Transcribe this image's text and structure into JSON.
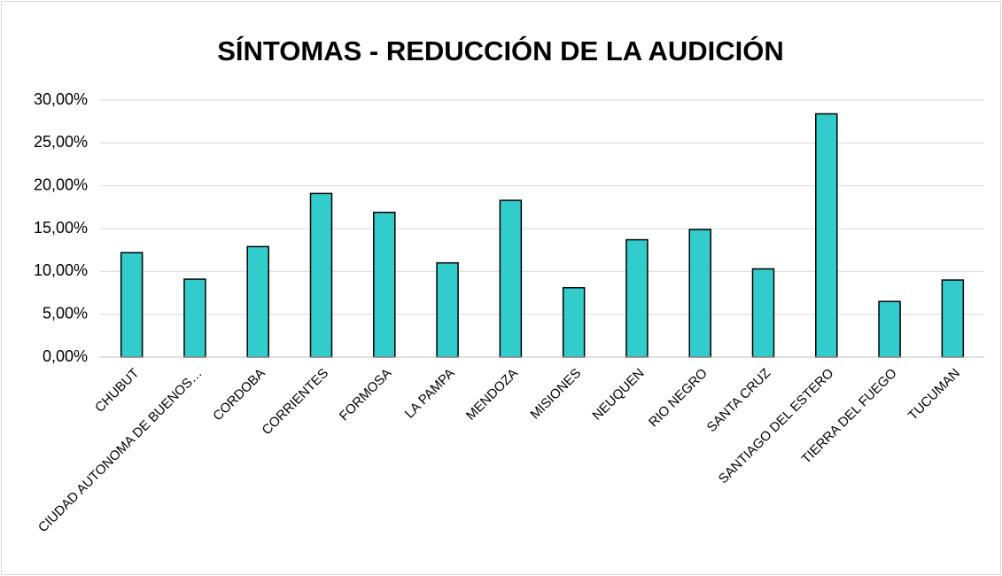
{
  "chart_data": {
    "type": "bar",
    "title": "SÍNTOMAS - REDUCCIÓN DE LA AUDICIÓN",
    "categories": [
      "CHUBUT",
      "CIUDAD AUTONOMA DE BUENOS…",
      "CORDOBA",
      "CORRIENTES",
      "FORMOSA",
      "LA PAMPA",
      "MENDOZA",
      "MISIONES",
      "NEUQUEN",
      "RIO NEGRO",
      "SANTA CRUZ",
      "SANTIAGO DEL ESTERO",
      "TIERRA DEL FUEGO",
      "TUCUMAN"
    ],
    "values": [
      12.2,
      9.1,
      12.9,
      19.1,
      16.9,
      11.0,
      18.3,
      8.1,
      13.7,
      14.9,
      10.3,
      28.4,
      6.5,
      9.0
    ],
    "color": "#33cccc",
    "ylim": [
      0,
      30
    ],
    "yticks": [
      {
        "value": 0,
        "label": "0,00%"
      },
      {
        "value": 5,
        "label": "5,00%"
      },
      {
        "value": 10,
        "label": "10,00%"
      },
      {
        "value": 15,
        "label": "15,00%"
      },
      {
        "value": 20,
        "label": "20,00%"
      },
      {
        "value": 25,
        "label": "25,00%"
      },
      {
        "value": 30,
        "label": "30,00%"
      }
    ],
    "grid": true
  }
}
